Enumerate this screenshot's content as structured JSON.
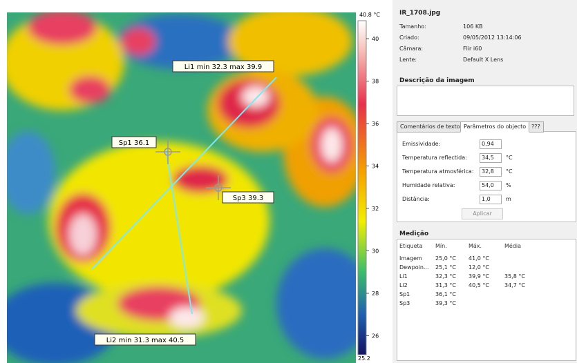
{
  "image": {
    "annotations": {
      "li1": "Li1 min 32.3 max 39.9",
      "sp1": "Sp1 36.1",
      "sp3": "Sp3 39.3",
      "li2": "Li2 min 31.3 max 40.5"
    }
  },
  "colorbar": {
    "max_label": "40.8 °C",
    "min_label": "25.2",
    "ticks": [
      "40",
      "38",
      "36",
      "34",
      "32",
      "30",
      "28",
      "26"
    ]
  },
  "info": {
    "filename": "IR_1708.jpg",
    "rows": [
      [
        "Tamanho:",
        "106 KB"
      ],
      [
        "Criado:",
        "09/05/2012 13:14:06"
      ],
      [
        "Câmara:",
        "Flir i60"
      ],
      [
        "Lente:",
        "Default X Lens"
      ]
    ]
  },
  "description": {
    "title": "Descrição da imagem"
  },
  "tabs": [
    "Comentários de texto",
    "Parâmetros do objecto",
    "???"
  ],
  "params": {
    "rows": [
      [
        "Emissividade:",
        "0,94"
      ],
      [
        "Temperatura reflectida:",
        "34,5",
        "°C"
      ],
      [
        "Temperatura atmosférica:",
        "32,8",
        "°C"
      ],
      [
        "Humidade relativa:",
        "54,0",
        "%"
      ],
      [
        "Distância:",
        "1,0",
        "m"
      ]
    ],
    "button": "Aplicar"
  },
  "measurement": {
    "title": "Medição",
    "columns": [
      "Etiqueta",
      "Mín.",
      "Máx.",
      "Média"
    ],
    "rows": [
      [
        "Imagem",
        "25,0 °C",
        "41,0 °C"
      ],
      [
        "Dewpoin...",
        "25,1 °C",
        "12,0 °C"
      ],
      [
        "Li1",
        "32,3 °C",
        "39,9 °C",
        "35,8 °C"
      ],
      [
        "Li2",
        "31,3 °C",
        "40,5 °C",
        "34,7 °C"
      ],
      [
        "Sp1",
        "36,1 °C"
      ],
      [
        "Sp3",
        "39,3 °C"
      ]
    ]
  }
}
